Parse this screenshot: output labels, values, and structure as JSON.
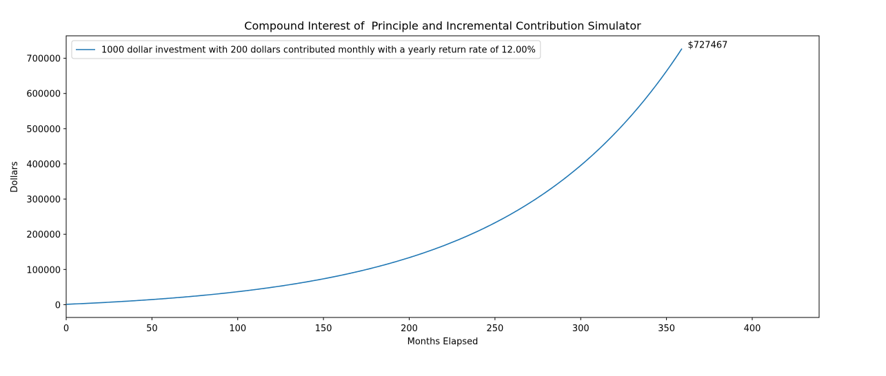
{
  "chart_data": {
    "type": "line",
    "title": "Compound Interest of  Principle and Incremental Contribution Simulator",
    "xlabel": "Months Elapsed",
    "ylabel": "Dollars",
    "xlim": [
      0,
      439
    ],
    "ylim": [
      -36373,
      763840
    ],
    "xticks": [
      0,
      50,
      100,
      150,
      200,
      250,
      300,
      350,
      400
    ],
    "yticks": [
      0,
      100000,
      200000,
      300000,
      400000,
      500000,
      600000,
      700000
    ],
    "grid": false,
    "legend_position": "upper-left",
    "series": [
      {
        "name": "1000 dollar investment with 200 dollars contributed monthly with a yearly return rate of 12.00%",
        "color": "#1f77b4",
        "model": {
          "principal": 1000,
          "monthly_contribution": 200,
          "annual_rate": 0.12,
          "months": 360
        }
      }
    ],
    "annotations": [
      {
        "text": "$727467",
        "x": 360,
        "y": 727467
      }
    ]
  }
}
